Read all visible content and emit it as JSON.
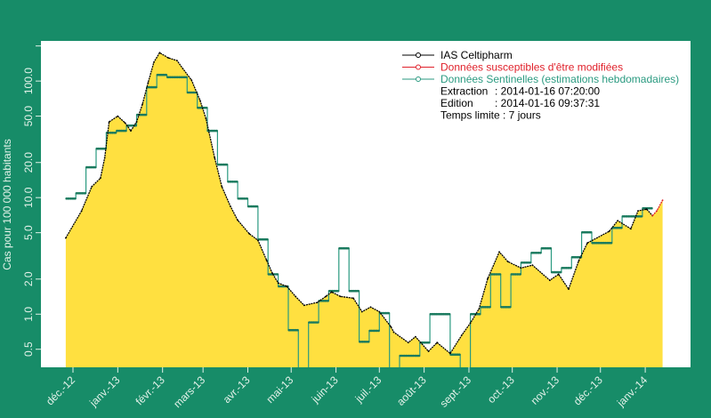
{
  "chart_data": {
    "type": "line",
    "ylabel": "Cas pour 100 000 habitants",
    "xlabel": "",
    "yscale": "log",
    "ylim": [
      0.35,
      221
    ],
    "yticks": [
      {
        "value": 0.5,
        "label": "0.5"
      },
      {
        "value": 1,
        "label": "1.0"
      },
      {
        "value": 2,
        "label": "2.0"
      },
      {
        "value": 5,
        "label": "5.0"
      },
      {
        "value": 10,
        "label": "10.0"
      },
      {
        "value": 20,
        "label": "20.0"
      },
      {
        "value": 50,
        "label": "50.0"
      },
      {
        "value": 100,
        "label": "100.0"
      },
      {
        "value": 200,
        "label": ""
      }
    ],
    "xticks": [
      {
        "date": "2012-12-01",
        "label": "déc.-12"
      },
      {
        "date": "2013-01-01",
        "label": "janv.-13"
      },
      {
        "date": "2013-02-01",
        "label": "févr.-13"
      },
      {
        "date": "2013-03-01",
        "label": "mars-13"
      },
      {
        "date": "2013-04-01",
        "label": "avr.-13"
      },
      {
        "date": "2013-05-01",
        "label": "mai-13"
      },
      {
        "date": "2013-06-01",
        "label": "juin-13"
      },
      {
        "date": "2013-07-01",
        "label": "juil.-13"
      },
      {
        "date": "2013-08-01",
        "label": "août-13"
      },
      {
        "date": "2013-09-01",
        "label": "sept.-13"
      },
      {
        "date": "2013-10-01",
        "label": "oct.-13"
      },
      {
        "date": "2013-11-01",
        "label": "nov.-13"
      },
      {
        "date": "2013-12-01",
        "label": "déc.-13"
      },
      {
        "date": "2014-01-01",
        "label": "janv.-14"
      }
    ],
    "grid": false,
    "legend_placement": "top-right",
    "legend": [
      {
        "label": "IAS Celtipharm",
        "color": "#000000"
      },
      {
        "label": "Données susceptibles d'être modifiées",
        "color": "#e0202a"
      },
      {
        "label": "Données Sentinelles (estimations hebdomadaires)",
        "color": "#2a9a80"
      }
    ],
    "info": [
      {
        "key": "Extraction",
        "value": ": 2014-01-16 07:20:00"
      },
      {
        "key": "Edition",
        "value": ": 2014-01-16 09:37:31"
      },
      {
        "key": "Temps limite : 7 jours",
        "value": ""
      }
    ],
    "fill_color": "#ffe040",
    "series": [
      {
        "name": "IAS Celtipharm",
        "color": "#000000",
        "x": [
          "2012-11-26",
          "2012-12-07",
          "2012-12-14",
          "2012-12-20",
          "2012-12-23",
          "2012-12-26",
          "2013-01-01",
          "2013-01-06",
          "2013-01-10",
          "2013-01-14",
          "2013-01-18",
          "2013-01-22",
          "2013-01-26",
          "2013-01-30",
          "2013-02-05",
          "2013-02-11",
          "2013-02-15",
          "2013-02-21",
          "2013-02-27",
          "2013-03-03",
          "2013-03-09",
          "2013-03-14",
          "2013-03-20",
          "2013-03-25",
          "2013-04-02",
          "2013-04-08",
          "2013-04-14",
          "2013-04-18",
          "2013-04-22",
          "2013-04-28",
          "2013-05-04",
          "2013-05-10",
          "2013-05-19",
          "2013-05-25",
          "2013-05-29",
          "2013-06-04",
          "2013-06-13",
          "2013-06-19",
          "2013-06-25",
          "2013-07-01",
          "2013-07-09",
          "2013-07-11",
          "2013-07-21",
          "2013-07-26",
          "2013-08-04",
          "2013-08-10",
          "2013-08-19",
          "2013-08-27",
          "2013-09-02",
          "2013-09-08",
          "2013-09-14",
          "2013-09-22",
          "2013-09-28",
          "2013-10-07",
          "2013-10-15",
          "2013-10-27",
          "2013-11-02",
          "2013-11-09",
          "2013-11-16",
          "2013-11-22",
          "2013-12-07",
          "2013-12-13",
          "2013-12-22",
          "2013-12-27",
          "2014-01-02",
          "2014-01-06"
        ],
        "values": [
          4.5,
          7.7,
          12.4,
          14.7,
          22,
          44.6,
          50,
          43.8,
          37.4,
          44.6,
          63,
          96.6,
          145,
          175,
          158,
          150,
          128,
          102,
          68,
          47.8,
          22,
          12.4,
          8.4,
          6.4,
          4.9,
          4.3,
          2.9,
          2.24,
          1.85,
          1.73,
          1.42,
          1.19,
          1.26,
          1.42,
          1.55,
          1.42,
          1.37,
          1.05,
          1.15,
          1.05,
          0.78,
          0.7,
          0.57,
          0.64,
          0.48,
          0.57,
          0.46,
          0.66,
          0.84,
          1.11,
          2.02,
          3.42,
          2.82,
          2.49,
          2.63,
          1.95,
          2.2,
          1.64,
          2.87,
          4.08,
          5.13,
          6.34,
          5.4,
          7.7,
          7.96,
          7.0
        ]
      },
      {
        "name": "Données susceptibles d'être modifiées",
        "color": "#e0202a",
        "x": [
          "2014-01-06",
          "2014-01-09",
          "2014-01-13"
        ],
        "values": [
          7.0,
          7.7,
          9.5
        ]
      },
      {
        "name": "Données Sentinelles (estimations hebdomadaires)",
        "color": "#2a9a80",
        "step": "weekly",
        "x": [
          "2012-11-26",
          "2012-12-03",
          "2012-12-10",
          "2012-12-17",
          "2012-12-24",
          "2012-12-31",
          "2013-01-07",
          "2013-01-14",
          "2013-01-21",
          "2013-01-28",
          "2013-02-04",
          "2013-02-11",
          "2013-02-18",
          "2013-02-25",
          "2013-03-04",
          "2013-03-11",
          "2013-03-18",
          "2013-03-25",
          "2013-04-01",
          "2013-04-08",
          "2013-04-15",
          "2013-04-22",
          "2013-04-29",
          "2013-05-06",
          "2013-05-13",
          "2013-05-20",
          "2013-05-27",
          "2013-06-03",
          "2013-06-10",
          "2013-06-17",
          "2013-06-24",
          "2013-07-01",
          "2013-07-08",
          "2013-07-15",
          "2013-07-22",
          "2013-07-29",
          "2013-08-05",
          "2013-08-12",
          "2013-08-19",
          "2013-08-26",
          "2013-09-02",
          "2013-09-09",
          "2013-09-16",
          "2013-09-23",
          "2013-09-30",
          "2013-10-07",
          "2013-10-14",
          "2013-10-21",
          "2013-10-28",
          "2013-11-04",
          "2013-11-11",
          "2013-11-18",
          "2013-11-25",
          "2013-12-02",
          "2013-12-09",
          "2013-12-16",
          "2013-12-23",
          "2013-12-30"
        ],
        "values": [
          9.8,
          10.9,
          18.2,
          26.3,
          36,
          37.4,
          41.5,
          51.3,
          88.5,
          113,
          108,
          108,
          79.7,
          59,
          37.4,
          19.2,
          13.7,
          9.8,
          8.4,
          4.38,
          2.2,
          1.73,
          0.73,
          0,
          0.85,
          1.3,
          1.58,
          3.67,
          1.58,
          0.58,
          0.72,
          1.02,
          0,
          0.44,
          0.44,
          0.57,
          1.0,
          1.0,
          0.45,
          0,
          1.0,
          1.15,
          2.2,
          1.15,
          2.2,
          2.77,
          3.36,
          3.67,
          2.29,
          2.49,
          3.08,
          5.04,
          4.08,
          4.08,
          5.5,
          6.9,
          6.9,
          8.1
        ]
      }
    ]
  }
}
